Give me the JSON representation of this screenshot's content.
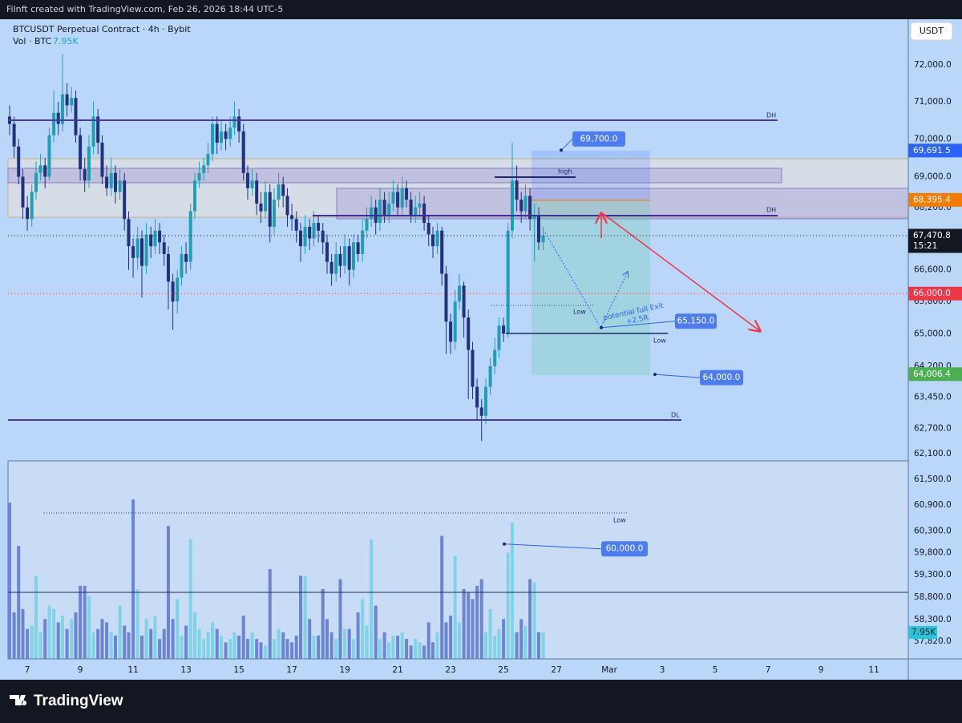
{
  "header": {
    "attribution": "Filnft created with TradingView.com, Feb 26, 2026 18:44 UTC-5"
  },
  "footer": {
    "brand": "TradingView"
  },
  "currency_button": "USDT",
  "chart_data": {
    "type": "candlestick",
    "title": "BTCUSDT Perpetual Contract · 4h · Bybit",
    "volume_legend": "Vol · BTC",
    "volume_value": {
      "value": 7950,
      "label": "7.95K"
    },
    "log_scale": true,
    "grid": false,
    "colors": {
      "up": "#1f9fb3",
      "down": "#22317e",
      "volume_up": "#7fd3e6",
      "volume_down": "#6d84d2"
    },
    "xlim": [
      6.27,
      40.3
    ],
    "xticks": [
      7,
      9,
      11,
      13,
      15,
      17,
      19,
      21,
      23,
      25,
      27,
      {
        "value": 29,
        "label": "Mar"
      },
      {
        "value": 31,
        "label": "3"
      },
      {
        "value": 33,
        "label": "5"
      },
      {
        "value": 35,
        "label": "7"
      },
      {
        "value": 37,
        "label": "9"
      },
      {
        "value": 39,
        "label": "11"
      }
    ],
    "ylim": [
      57434,
      73218
    ],
    "yticks": [
      {
        "value": 72000,
        "label": "72,000.0"
      },
      {
        "value": 71000,
        "label": "71,000.0"
      },
      {
        "value": 70000,
        "label": "70,000.0"
      },
      {
        "value": 69000,
        "label": "69,000.0"
      },
      {
        "value": 68200,
        "label": "68,200.0"
      },
      {
        "value": 66600,
        "label": "66,600.0"
      },
      {
        "value": 65800,
        "label": "65,800.0"
      },
      {
        "value": 65000,
        "label": "65,000.0"
      },
      {
        "value": 64200,
        "label": "64,200.0"
      },
      {
        "value": 63450,
        "label": "63,450.0"
      },
      {
        "value": 62700,
        "label": "62,700.0"
      },
      {
        "value": 62100,
        "label": "62,100.0"
      },
      {
        "value": 61500,
        "label": "61,500.0"
      },
      {
        "value": 60900,
        "label": "60,900.0"
      },
      {
        "value": 60300,
        "label": "60,300.0"
      },
      {
        "value": 59800,
        "label": "59,800.0"
      },
      {
        "value": 59300,
        "label": "59,300.0"
      },
      {
        "value": 58800,
        "label": "58,800.0"
      },
      {
        "value": 58300,
        "label": "58,300.0"
      },
      {
        "value": 57820,
        "label": "57,820.0"
      }
    ],
    "y2lim": [
      0,
      192000
    ],
    "x": [
      6.33,
      6.5,
      6.67,
      6.83,
      7,
      7.17,
      7.33,
      7.5,
      7.67,
      7.83,
      8,
      8.17,
      8.33,
      8.5,
      8.67,
      8.83,
      9,
      9.17,
      9.33,
      9.5,
      9.67,
      9.83,
      10,
      10.17,
      10.33,
      10.5,
      10.67,
      10.83,
      11,
      11.17,
      11.33,
      11.5,
      11.67,
      11.83,
      12,
      12.17,
      12.33,
      12.5,
      12.67,
      12.83,
      13,
      13.17,
      13.33,
      13.5,
      13.67,
      13.83,
      14,
      14.17,
      14.33,
      14.5,
      14.67,
      14.83,
      15,
      15.17,
      15.33,
      15.5,
      15.67,
      15.83,
      16,
      16.17,
      16.33,
      16.5,
      16.67,
      16.83,
      17,
      17.17,
      17.33,
      17.5,
      17.67,
      17.83,
      18,
      18.17,
      18.33,
      18.5,
      18.67,
      18.83,
      19,
      19.17,
      19.33,
      19.5,
      19.67,
      19.83,
      20,
      20.17,
      20.33,
      20.5,
      20.67,
      20.83,
      21,
      21.17,
      21.33,
      21.5,
      21.67,
      21.83,
      22,
      22.17,
      22.33,
      22.5,
      22.67,
      22.83,
      23,
      23.17,
      23.33,
      23.5,
      23.67,
      23.83,
      24,
      24.17,
      24.33,
      24.5,
      24.67,
      24.83,
      25,
      25.17,
      25.33,
      25.5,
      25.67,
      25.83,
      26,
      26.17,
      26.33,
      26.5
    ],
    "open": [
      70600,
      70400,
      69800,
      69000,
      68200,
      67900,
      68600,
      69100,
      69300,
      69000,
      70100,
      70700,
      70400,
      71200,
      70900,
      71100,
      70100,
      69200,
      68900,
      69800,
      70600,
      69900,
      69000,
      68700,
      69100,
      68600,
      68900,
      67900,
      67200,
      66900,
      67400,
      66700,
      67500,
      67200,
      67600,
      67300,
      67000,
      66300,
      65800,
      66400,
      67000,
      66800,
      68100,
      68900,
      69100,
      69300,
      69600,
      70400,
      69900,
      70200,
      70000,
      70300,
      70600,
      70200,
      69100,
      68700,
      68900,
      68300,
      68100,
      68600,
      67700,
      68400,
      68800,
      68500,
      68000,
      67900,
      67600,
      67200,
      67700,
      67400,
      67800,
      67600,
      67300,
      66800,
      66500,
      67000,
      66700,
      67200,
      66600,
      67300,
      67000,
      67600,
      67900,
      68200,
      67800,
      68400,
      68000,
      68300,
      68600,
      68200,
      68700,
      68400,
      68000,
      68200,
      68300,
      67800,
      67500,
      67200,
      67600,
      66500,
      65300,
      64800,
      65800,
      66200,
      65400,
      64600,
      63700,
      63200,
      63000,
      63700,
      64200,
      64600,
      65200,
      65000,
      67600,
      68900,
      68400,
      68100,
      68500,
      67900,
      68000,
      67300
    ],
    "high": [
      70900,
      70600,
      70000,
      69200,
      68500,
      68800,
      69400,
      69600,
      69500,
      70300,
      71300,
      71000,
      72300,
      71500,
      71400,
      71300,
      70300,
      69500,
      70100,
      71000,
      70800,
      70100,
      69300,
      69500,
      69300,
      69200,
      69100,
      68100,
      67400,
      67700,
      67600,
      67800,
      67700,
      67900,
      67800,
      67500,
      67200,
      66500,
      66600,
      67200,
      67300,
      68300,
      69100,
      69400,
      69500,
      69900,
      70600,
      70600,
      70500,
      70400,
      70600,
      71000,
      70800,
      70400,
      69300,
      69200,
      69100,
      68600,
      68900,
      68800,
      68700,
      69100,
      69000,
      68700,
      68300,
      68100,
      67800,
      68000,
      67900,
      68100,
      68000,
      67800,
      67500,
      67000,
      67300,
      67200,
      67500,
      67400,
      67500,
      67500,
      67900,
      68200,
      68500,
      68400,
      68700,
      68600,
      68600,
      68900,
      68800,
      69000,
      68900,
      68600,
      68500,
      68600,
      68500,
      68000,
      67700,
      67800,
      67700,
      66700,
      65500,
      66100,
      66500,
      66300,
      65600,
      64800,
      63900,
      63400,
      63900,
      64400,
      64900,
      65400,
      65400,
      67800,
      69900,
      69300,
      68600,
      68800,
      68700,
      68300,
      68200,
      67700
    ],
    "low": [
      70100,
      69500,
      68800,
      67900,
      67600,
      67700,
      68400,
      68900,
      68700,
      68900,
      69900,
      70100,
      70200,
      70600,
      70700,
      69900,
      68900,
      68600,
      68700,
      69600,
      69600,
      68800,
      68500,
      68500,
      68300,
      68400,
      67600,
      66600,
      66400,
      66600,
      65900,
      66500,
      66900,
      67000,
      67000,
      66700,
      65600,
      65100,
      65500,
      66200,
      66500,
      66600,
      67900,
      68700,
      68900,
      69100,
      69400,
      69600,
      69700,
      69700,
      69800,
      70100,
      69900,
      68900,
      68400,
      68500,
      68000,
      67800,
      67900,
      67300,
      67500,
      68200,
      68200,
      67700,
      67600,
      67300,
      66800,
      67000,
      67100,
      67200,
      67300,
      67000,
      66500,
      66200,
      66300,
      66400,
      66500,
      66200,
      66400,
      66800,
      66800,
      67400,
      67700,
      67500,
      67600,
      67800,
      67800,
      68100,
      68000,
      68000,
      68200,
      67800,
      67800,
      68000,
      67600,
      67200,
      66900,
      67000,
      66200,
      64500,
      64500,
      64600,
      65600,
      64900,
      63400,
      63400,
      62900,
      62400,
      62800,
      63500,
      64000,
      64400,
      64800,
      64900,
      67400,
      68100,
      67800,
      67900,
      67600,
      66800,
      67100,
      67100
    ],
    "close": [
      70400,
      69800,
      69000,
      68200,
      67900,
      68600,
      69100,
      69300,
      69000,
      70100,
      70700,
      70400,
      71200,
      70900,
      71100,
      70100,
      69200,
      68900,
      69800,
      70600,
      69900,
      69000,
      68700,
      69100,
      68600,
      68900,
      67900,
      67200,
      66900,
      67400,
      66700,
      67500,
      67200,
      67600,
      67300,
      67000,
      66300,
      65800,
      66400,
      67000,
      66800,
      68100,
      68900,
      69100,
      69300,
      69600,
      70400,
      69900,
      70200,
      70000,
      70300,
      70600,
      70200,
      69100,
      68700,
      68900,
      68300,
      68100,
      68600,
      67700,
      68400,
      68800,
      68500,
      68000,
      67900,
      67600,
      67200,
      67700,
      67400,
      67800,
      67600,
      67300,
      66800,
      66500,
      67000,
      66700,
      67200,
      66600,
      67300,
      67000,
      67600,
      67900,
      68200,
      67800,
      68400,
      68000,
      68300,
      68600,
      68200,
      68700,
      68400,
      68000,
      68200,
      68300,
      67800,
      67500,
      67200,
      67600,
      66500,
      65300,
      64800,
      65800,
      66200,
      65400,
      64600,
      63700,
      63200,
      63000,
      63700,
      64200,
      64600,
      65200,
      65000,
      67600,
      68900,
      68400,
      68100,
      68500,
      67900,
      68000,
      67300,
      67470.8
    ],
    "volume": [
      47000,
      14000,
      34000,
      15000,
      9000,
      10000,
      25000,
      8000,
      12000,
      16000,
      15000,
      11000,
      13000,
      9000,
      12000,
      14000,
      22000,
      22000,
      19000,
      8000,
      9000,
      12000,
      11000,
      8000,
      7000,
      16000,
      10000,
      8000,
      48000,
      21000,
      7000,
      12000,
      9000,
      13000,
      6000,
      9000,
      40000,
      12000,
      18000,
      7000,
      10000,
      36000,
      14000,
      9000,
      6000,
      8000,
      11000,
      9000,
      7000,
      5000,
      6000,
      8000,
      7000,
      13000,
      6000,
      8000,
      6000,
      5000,
      4000,
      27000,
      6000,
      9000,
      8000,
      6000,
      5000,
      7000,
      25000,
      25000,
      12000,
      7000,
      7000,
      21000,
      12000,
      8000,
      6000,
      24000,
      9000,
      9000,
      6000,
      14000,
      18000,
      10000,
      36000,
      16000,
      6000,
      8000,
      5000,
      7000,
      7000,
      8000,
      6000,
      4000,
      6000,
      5000,
      4000,
      11000,
      5000,
      8000,
      37000,
      11000,
      13000,
      31000,
      11000,
      21000,
      20000,
      18000,
      22000,
      24000,
      8000,
      15000,
      7000,
      9000,
      12000,
      32000,
      41000,
      8000,
      12000,
      10000,
      24000,
      23000,
      8000,
      7950
    ],
    "price_labels": [
      {
        "value": 69691.5,
        "label": "69,691.5",
        "color": "#2962ff"
      },
      {
        "value": 68395.4,
        "label": "68,395.4",
        "color": "#f57c00"
      },
      {
        "value": 67470.8,
        "label": "67,470.8",
        "sublabel": "15:21",
        "color": "#131722",
        "line": "dotted"
      },
      {
        "value": 66000,
        "label": "66,000.0",
        "color": "#f23645",
        "line": "dotted"
      },
      {
        "value": 64006.4,
        "label": "64,006.4",
        "color": "#4caf50"
      }
    ],
    "callouts": [
      {
        "value": 69700,
        "label": "69,700.0"
      },
      {
        "value": 65150,
        "label": "65,150.0"
      },
      {
        "value": 64000,
        "label": "64,000.0"
      },
      {
        "value": 60000,
        "label": "60,000.0"
      }
    ],
    "annotations": {
      "dh_upper": "DH",
      "dh_lower": "DH",
      "dl": "DL",
      "high": "high",
      "low_dotted": "Low",
      "low_solid": "Low",
      "low_volume": "Low",
      "exit_note": "potential full Exit",
      "exit_r": "+2.5R"
    }
  }
}
